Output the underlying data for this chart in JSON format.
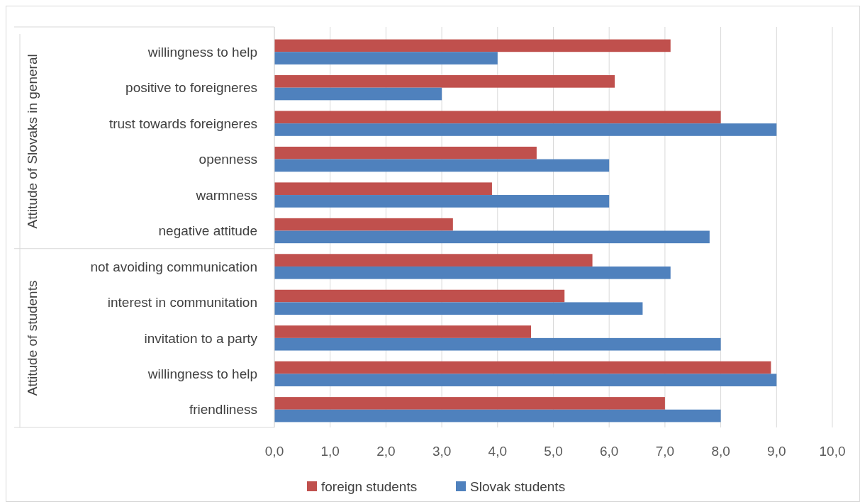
{
  "chart_data": {
    "type": "bar",
    "orientation": "horizontal",
    "categories": [
      "willingness to help",
      "positive to foreigneres",
      "trust towards foreigneres",
      "openness",
      "warmness",
      "negative attitude",
      "not avoiding communication",
      "interest in communitation",
      "invitation to a party",
      "willingness to help",
      "friendliness"
    ],
    "series": [
      {
        "name": "foreign students",
        "color": "#c0504d",
        "values": [
          7.1,
          6.1,
          8.0,
          4.7,
          3.9,
          3.2,
          5.7,
          5.2,
          4.6,
          8.9,
          7.0
        ]
      },
      {
        "name": "Slovak students",
        "color": "#4f81bd",
        "values": [
          4.0,
          3.0,
          9.0,
          6.0,
          6.0,
          7.8,
          7.1,
          6.6,
          8.0,
          9.0,
          8.0
        ]
      }
    ],
    "xlim": [
      0,
      10
    ],
    "xticks": [
      {
        "value": 0,
        "label": "0,0"
      },
      {
        "value": 1,
        "label": "1,0"
      },
      {
        "value": 2,
        "label": "2,0"
      },
      {
        "value": 3,
        "label": "3,0"
      },
      {
        "value": 4,
        "label": "4,0"
      },
      {
        "value": 5,
        "label": "5,0"
      },
      {
        "value": 6,
        "label": "6,0"
      },
      {
        "value": 7,
        "label": "7,0"
      },
      {
        "value": 8,
        "label": "8,0"
      },
      {
        "value": 9,
        "label": "9,0"
      },
      {
        "value": 10,
        "label": "10,0"
      }
    ],
    "annotations": [
      "Attitude of Slovaks in general",
      "Attitude of students"
    ],
    "grid": "x",
    "legend": "bottom"
  }
}
